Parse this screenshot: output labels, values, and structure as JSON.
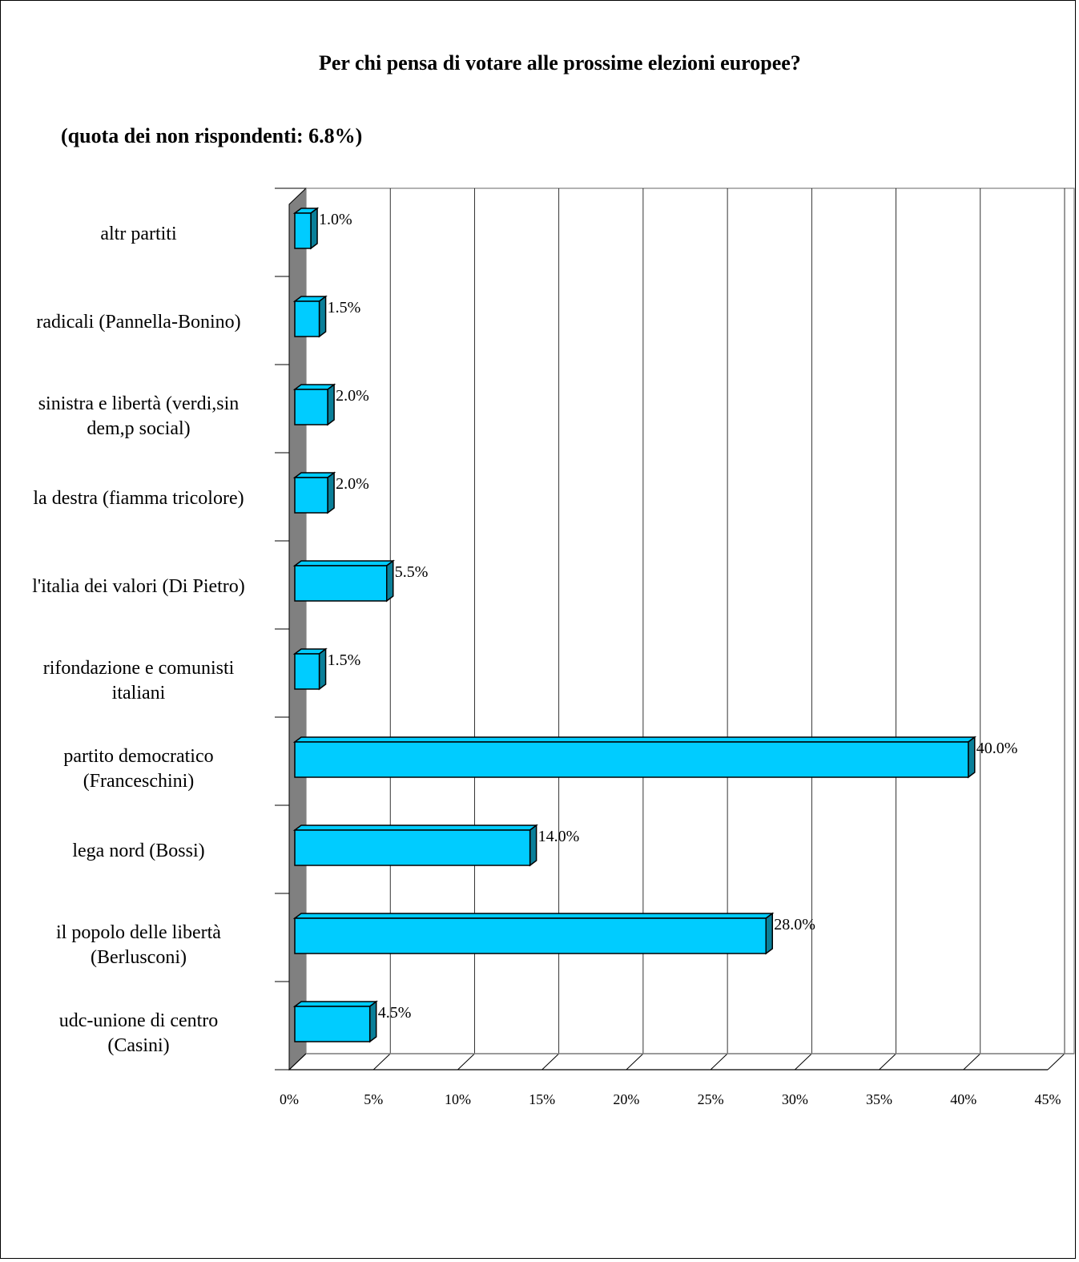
{
  "chart_data": {
    "type": "bar",
    "orientation": "horizontal",
    "title": "Per chi pensa di votare alle prossime elezioni europee?",
    "subtitle": "(quota dei non rispondenti: 6.8%)",
    "categories": [
      [
        "altr partiti"
      ],
      [
        "radicali (Pannella-Bonino)"
      ],
      [
        "sinistra e libertà (verdi,sin",
        "dem,p social)"
      ],
      [
        "la destra (fiamma tricolore)"
      ],
      [
        "l'italia dei valori (Di Pietro)"
      ],
      [
        "rifondazione e comunisti",
        "italiani"
      ],
      [
        "partito democratico",
        "(Franceschini)"
      ],
      [
        "lega nord (Bossi)"
      ],
      [
        "il popolo delle libertà",
        "(Berlusconi)"
      ],
      [
        "udc-unione di centro",
        "(Casini)"
      ]
    ],
    "values": [
      1.0,
      1.5,
      2.0,
      2.0,
      5.5,
      1.5,
      40.0,
      14.0,
      28.0,
      4.5
    ],
    "value_labels": [
      "1.0%",
      "1.5%",
      "2.0%",
      "2.0%",
      "5.5%",
      "1.5%",
      "40.0%",
      "14.0%",
      "28.0%",
      "4.5%"
    ],
    "xlim": [
      0,
      45
    ],
    "x_ticks": [
      "0%",
      "5%",
      "10%",
      "15%",
      "20%",
      "25%",
      "30%",
      "35%",
      "40%",
      "45%"
    ],
    "x_tick_values": [
      0,
      5,
      10,
      15,
      20,
      25,
      30,
      35,
      40,
      45
    ],
    "xlabel": "",
    "ylabel": "",
    "grid": true,
    "legend": "none",
    "bar_color": "#00CCFF",
    "bar_side_color": "#0A7F99",
    "wall_color": "#808080"
  }
}
